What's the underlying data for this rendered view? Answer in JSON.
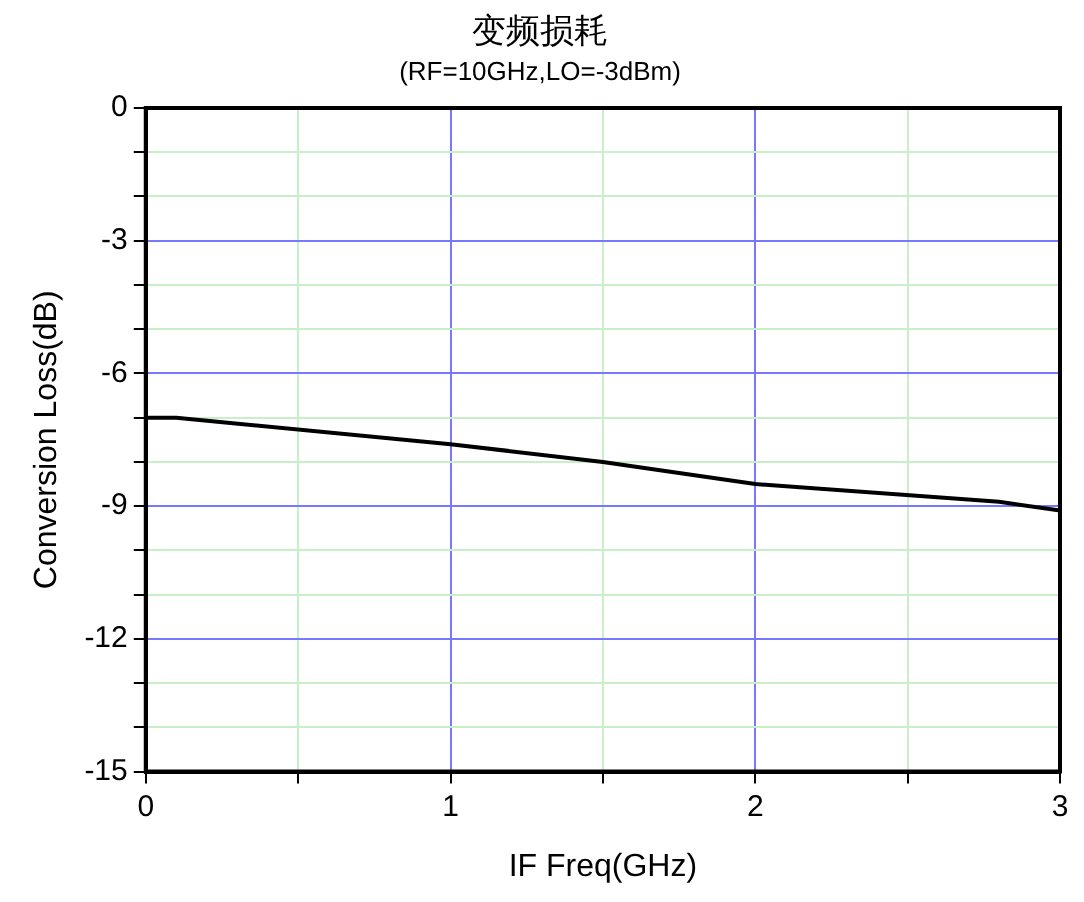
{
  "chart_data": {
    "type": "line",
    "title": "变频损耗",
    "subtitle": "(RF=10GHz,LO=-3dBm)",
    "xlabel": "IF Freq(GHz)",
    "ylabel": "Conversion Loss(dB)",
    "x": [
      0,
      0.1,
      1,
      1.5,
      2,
      2.8,
      3
    ],
    "series": [
      {
        "color": "#000000",
        "values": [
          -7.0,
          -7.0,
          -7.6,
          -8.0,
          -8.5,
          -8.9,
          -9.1
        ]
      }
    ],
    "xlim": [
      0,
      3
    ],
    "ylim": [
      -15,
      0
    ],
    "xticks": [
      0,
      {
        "value": 0.5,
        "label": null
      },
      1,
      {
        "value": 1.5,
        "label": null
      },
      2,
      {
        "value": 2.5,
        "label": null
      },
      3
    ],
    "yticks": [
      -15,
      {
        "value": -14,
        "label": null
      },
      {
        "value": -13,
        "label": null
      },
      -12,
      {
        "value": -11,
        "label": null
      },
      {
        "value": -10,
        "label": null
      },
      -9,
      {
        "value": -8,
        "label": null
      },
      {
        "value": -7,
        "label": null
      },
      -6,
      {
        "value": -5,
        "label": null
      },
      {
        "value": -4,
        "label": null
      },
      -3,
      {
        "value": -2,
        "label": null
      },
      {
        "value": -1,
        "label": null
      },
      0
    ],
    "grid": true,
    "legend": false,
    "marker": "none",
    "line_style": "solid"
  }
}
